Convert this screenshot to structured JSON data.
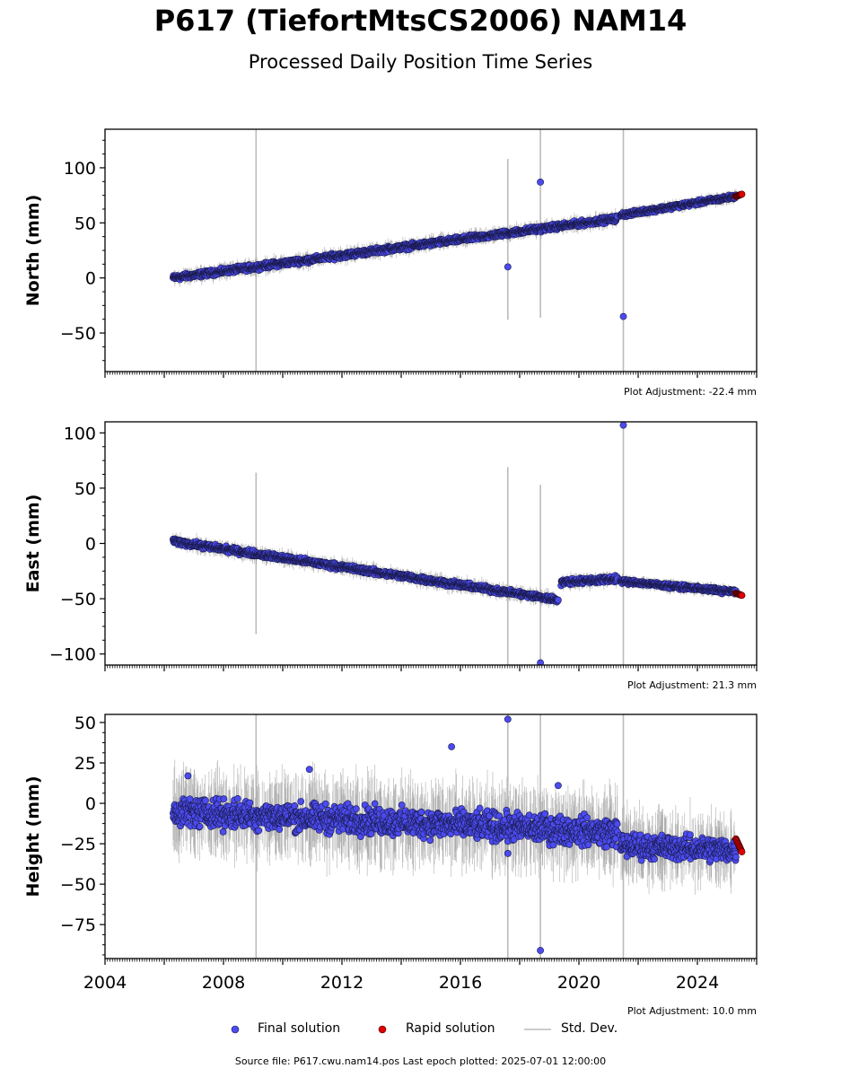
{
  "title": "P617 (TiefortMtsCS2006) NAM14",
  "subtitle": "Processed Daily Position Time Series",
  "source_note": "Source file: P617.cwu.nam14.pos  Last epoch plotted: 2025-07-01 12:00:00",
  "legend": {
    "final": "Final solution",
    "rapid": "Rapid solution",
    "stddev": "Std. Dev."
  },
  "colors": {
    "final": "#4b4bef",
    "rapid": "#e00000",
    "stddev": "#bbbbbb"
  },
  "chart_data": [
    {
      "type": "scatter",
      "ylabel": "North (mm)",
      "adjustment": "Plot Adjustment: -22.4 mm",
      "xlim": [
        2004,
        2026
      ],
      "ylim": [
        -85,
        135
      ],
      "yticks": [
        -50,
        0,
        50,
        100
      ],
      "yticklabels": [
        "−50",
        "0",
        "50",
        "100"
      ],
      "trend_segments": [
        {
          "x": [
            2006.3,
            2021.3
          ],
          "y": [
            0,
            54
          ],
          "noise": 2
        },
        {
          "x": [
            2021.4,
            2025.3
          ],
          "y": [
            57,
            74
          ],
          "noise": 1.6
        }
      ],
      "rapid": {
        "x": [
          2025.3,
          2025.5
        ],
        "y": [
          74,
          76
        ]
      },
      "outliers": [
        {
          "x": 2018.7,
          "y": 87
        },
        {
          "x": 2017.6,
          "y": 10
        },
        {
          "x": 2021.5,
          "y": -35
        }
      ],
      "stddev_lines": [
        {
          "x": 2009.1,
          "y": [
            -85,
            135
          ]
        },
        {
          "x": 2017.6,
          "y": [
            -38,
            108
          ]
        },
        {
          "x": 2018.7,
          "y": [
            -36,
            135
          ]
        },
        {
          "x": 2021.5,
          "y": [
            -85,
            135
          ]
        }
      ]
    },
    {
      "type": "scatter",
      "ylabel": "East (mm)",
      "adjustment": "Plot Adjustment: 21.3 mm",
      "xlim": [
        2004,
        2026
      ],
      "ylim": [
        -110,
        110
      ],
      "yticks": [
        -100,
        -50,
        0,
        50,
        100
      ],
      "yticklabels": [
        "−100",
        "−50",
        "0",
        "50",
        "100"
      ],
      "trend_segments": [
        {
          "x": [
            2006.3,
            2019.3
          ],
          "y": [
            2,
            -51
          ],
          "noise": 2
        },
        {
          "x": [
            2019.4,
            2021.3
          ],
          "y": [
            -35,
            -32
          ],
          "noise": 2
        },
        {
          "x": [
            2021.4,
            2025.3
          ],
          "y": [
            -34,
            -44
          ],
          "noise": 1.6
        }
      ],
      "rapid": {
        "x": [
          2025.3,
          2025.5
        ],
        "y": [
          -45,
          -47
        ]
      },
      "outliers": [
        {
          "x": 2021.5,
          "y": 107
        },
        {
          "x": 2018.7,
          "y": -108
        }
      ],
      "stddev_lines": [
        {
          "x": 2009.1,
          "y": [
            -82,
            64
          ]
        },
        {
          "x": 2017.6,
          "y": [
            -110,
            69
          ]
        },
        {
          "x": 2018.7,
          "y": [
            -110,
            53
          ]
        },
        {
          "x": 2021.5,
          "y": [
            -110,
            110
          ]
        }
      ]
    },
    {
      "type": "scatter",
      "ylabel": "Height (mm)",
      "adjustment": "Plot Adjustment: 10.0 mm",
      "xlabel": "",
      "xlim": [
        2004,
        2026
      ],
      "ylim": [
        -96,
        55
      ],
      "xticks": [
        2004,
        2008,
        2012,
        2016,
        2020,
        2024
      ],
      "xticklabels": [
        "2004",
        "2008",
        "2012",
        "2016",
        "2020",
        "2024"
      ],
      "yticks": [
        -75,
        -50,
        -25,
        0,
        25,
        50
      ],
      "yticklabels": [
        "−75",
        "−50",
        "−25",
        "0",
        "25",
        "50"
      ],
      "trend_segments": [
        {
          "x": [
            2006.3,
            2021.3
          ],
          "y": [
            -5,
            -18
          ],
          "noise": 7
        },
        {
          "x": [
            2021.4,
            2025.3
          ],
          "y": [
            -26,
            -29
          ],
          "noise": 6
        }
      ],
      "rapid": {
        "x": [
          2025.3,
          2025.5
        ],
        "y": [
          -22,
          -30
        ]
      },
      "outliers": [
        {
          "x": 2017.6,
          "y": 52
        },
        {
          "x": 2015.7,
          "y": 35
        },
        {
          "x": 2010.9,
          "y": 21
        },
        {
          "x": 2019.3,
          "y": 11
        },
        {
          "x": 2006.8,
          "y": 17
        },
        {
          "x": 2017.6,
          "y": -31
        },
        {
          "x": 2018.7,
          "y": -91
        }
      ],
      "stddev_lines": [
        {
          "x": 2009.1,
          "y": [
            -96,
            55
          ]
        },
        {
          "x": 2017.6,
          "y": [
            -96,
            55
          ]
        },
        {
          "x": 2018.7,
          "y": [
            -96,
            55
          ]
        },
        {
          "x": 2021.5,
          "y": [
            -96,
            55
          ]
        }
      ]
    }
  ]
}
